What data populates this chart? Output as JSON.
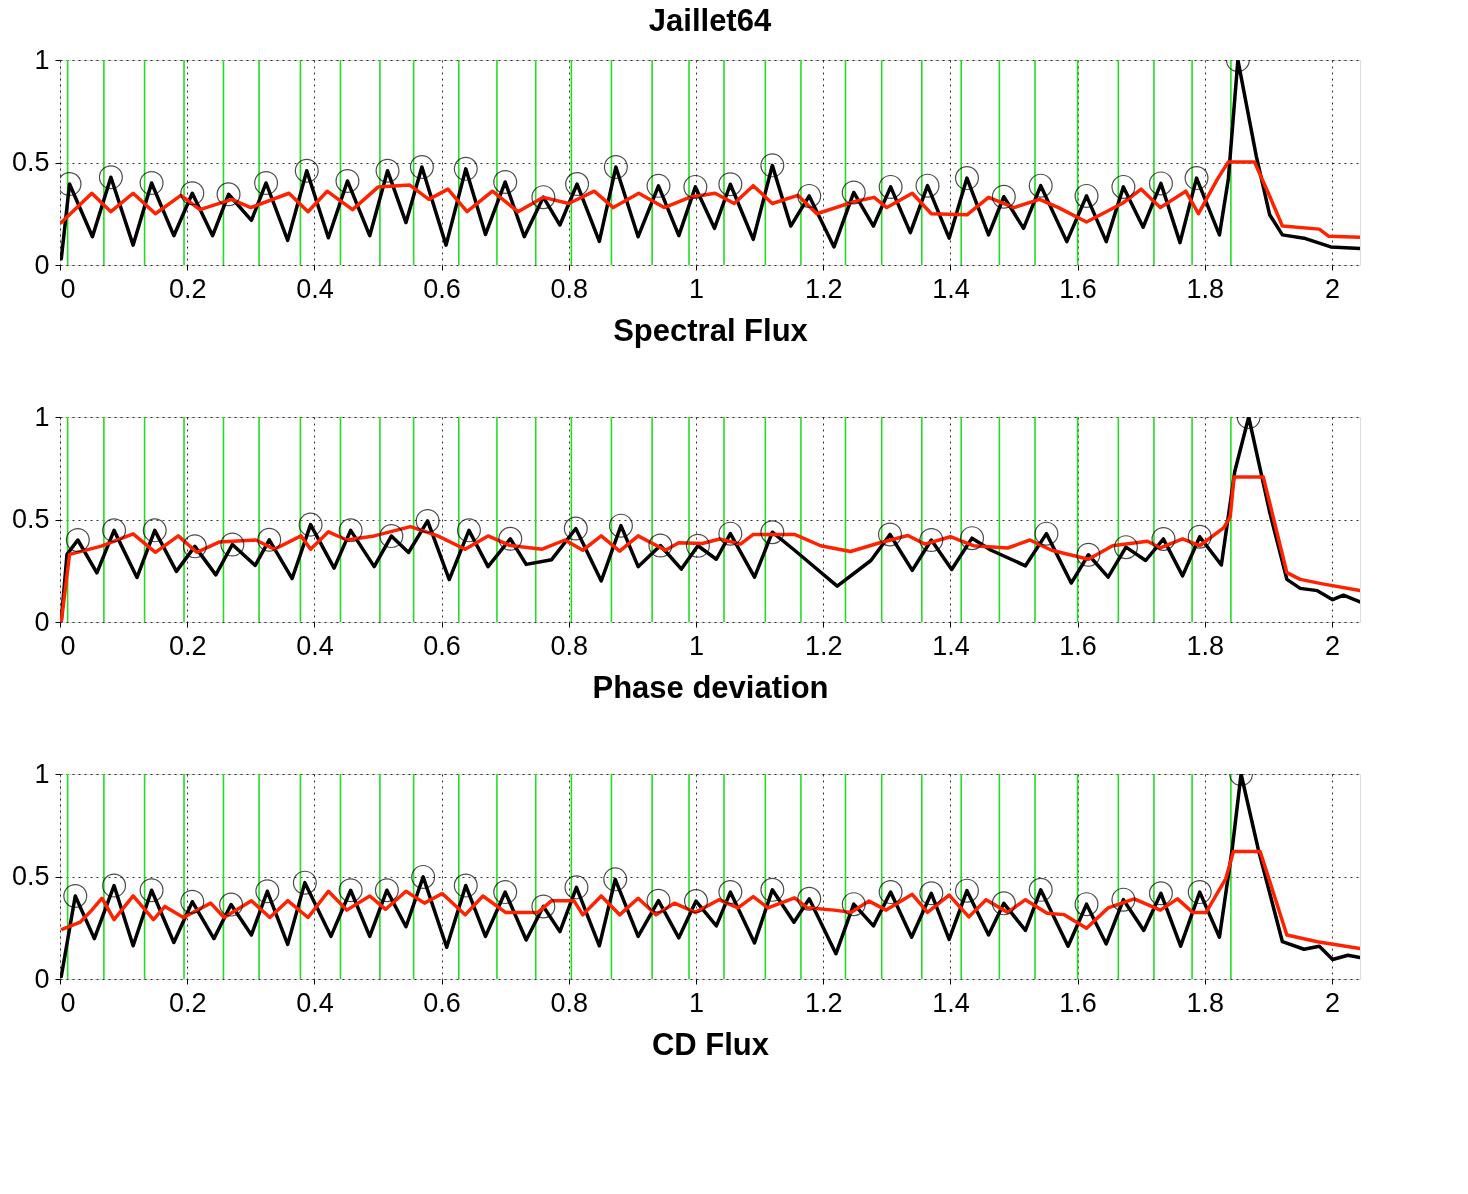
{
  "chart_data": [
    {
      "type": "line",
      "title": "Jaillet64",
      "xlabel": "Spectral Flux",
      "xlim": [
        0,
        2.044
      ],
      "ylim": [
        0,
        1
      ],
      "xticks": [
        0,
        0.2,
        0.4,
        0.6,
        0.8,
        1,
        1.2,
        1.4,
        1.6,
        1.8,
        2
      ],
      "yticks": [
        0,
        0.5,
        1
      ],
      "grid": true,
      "series": [
        {
          "type": "line",
          "color": "#000000",
          "x": [
            0.002,
            0.015,
            0.051,
            0.08,
            0.115,
            0.144,
            0.179,
            0.208,
            0.24,
            0.265,
            0.301,
            0.324,
            0.358,
            0.388,
            0.422,
            0.452,
            0.487,
            0.515,
            0.544,
            0.569,
            0.607,
            0.638,
            0.669,
            0.7,
            0.73,
            0.76,
            0.786,
            0.813,
            0.848,
            0.874,
            0.909,
            0.941,
            0.973,
            0.999,
            1.029,
            1.054,
            1.09,
            1.12,
            1.149,
            1.178,
            1.217,
            1.248,
            1.279,
            1.306,
            1.337,
            1.364,
            1.398,
            1.426,
            1.46,
            1.484,
            1.515,
            1.542,
            1.583,
            1.614,
            1.645,
            1.672,
            1.703,
            1.731,
            1.761,
            1.787,
            1.823,
            1.837,
            1.852,
            1.881,
            1.902,
            1.922,
            1.956,
            1.998,
            2.044
          ],
          "values": [
            0.03,
            0.395,
            0.138,
            0.428,
            0.097,
            0.4,
            0.143,
            0.35,
            0.143,
            0.345,
            0.218,
            0.4,
            0.12,
            0.46,
            0.133,
            0.41,
            0.143,
            0.46,
            0.207,
            0.478,
            0.097,
            0.469,
            0.149,
            0.405,
            0.138,
            0.331,
            0.195,
            0.395,
            0.115,
            0.478,
            0.138,
            0.386,
            0.143,
            0.381,
            0.179,
            0.394,
            0.125,
            0.486,
            0.19,
            0.337,
            0.088,
            0.354,
            0.19,
            0.381,
            0.158,
            0.387,
            0.131,
            0.424,
            0.147,
            0.333,
            0.179,
            0.387,
            0.114,
            0.337,
            0.114,
            0.381,
            0.184,
            0.398,
            0.109,
            0.424,
            0.147,
            0.42,
            1.0,
            0.53,
            0.245,
            0.147,
            0.131,
            0.088,
            0.081
          ]
        },
        {
          "type": "line",
          "color": "#ff2200",
          "x": [
            0.002,
            0.05,
            0.08,
            0.115,
            0.15,
            0.19,
            0.22,
            0.27,
            0.3,
            0.36,
            0.39,
            0.42,
            0.46,
            0.5,
            0.55,
            0.58,
            0.61,
            0.64,
            0.68,
            0.72,
            0.76,
            0.8,
            0.84,
            0.87,
            0.91,
            0.95,
            0.99,
            1.03,
            1.06,
            1.09,
            1.12,
            1.16,
            1.19,
            1.25,
            1.28,
            1.3,
            1.34,
            1.37,
            1.426,
            1.46,
            1.5,
            1.54,
            1.57,
            1.614,
            1.67,
            1.7,
            1.73,
            1.77,
            1.79,
            1.82,
            1.837,
            1.878,
            1.9,
            1.922,
            1.98,
            1.995,
            2.044
          ],
          "values": [
            0.207,
            0.35,
            0.26,
            0.35,
            0.25,
            0.34,
            0.27,
            0.32,
            0.28,
            0.35,
            0.26,
            0.36,
            0.27,
            0.38,
            0.39,
            0.32,
            0.37,
            0.26,
            0.36,
            0.26,
            0.33,
            0.3,
            0.36,
            0.28,
            0.35,
            0.28,
            0.33,
            0.35,
            0.3,
            0.387,
            0.3,
            0.34,
            0.25,
            0.31,
            0.33,
            0.28,
            0.35,
            0.25,
            0.245,
            0.33,
            0.28,
            0.32,
            0.28,
            0.21,
            0.3,
            0.37,
            0.28,
            0.36,
            0.25,
            0.42,
            0.503,
            0.503,
            0.35,
            0.19,
            0.175,
            0.14,
            0.135
          ]
        },
        {
          "type": "scatter",
          "marker": "circle",
          "color": "#000000",
          "x": [
            0.015,
            0.08,
            0.144,
            0.208,
            0.265,
            0.324,
            0.388,
            0.452,
            0.515,
            0.569,
            0.638,
            0.7,
            0.76,
            0.813,
            0.874,
            0.941,
            0.999,
            1.054,
            1.12,
            1.178,
            1.248,
            1.306,
            1.364,
            1.426,
            1.484,
            1.542,
            1.614,
            1.672,
            1.731,
            1.787,
            1.852
          ],
          "values": [
            0.395,
            0.428,
            0.4,
            0.35,
            0.345,
            0.4,
            0.46,
            0.41,
            0.46,
            0.478,
            0.469,
            0.405,
            0.331,
            0.395,
            0.478,
            0.386,
            0.381,
            0.394,
            0.486,
            0.337,
            0.354,
            0.381,
            0.387,
            0.424,
            0.333,
            0.387,
            0.337,
            0.381,
            0.398,
            0.424,
            1.0
          ]
        }
      ],
      "ref_lines": [
        {
          "axis": "x",
          "value": 0.012,
          "color": "#22dd22"
        },
        {
          "axis": "x",
          "value": 0.069,
          "color": "#22dd22"
        },
        {
          "axis": "x",
          "value": 0.133,
          "color": "#22dd22"
        },
        {
          "axis": "x",
          "value": 0.195,
          "color": "#22dd22"
        },
        {
          "axis": "x",
          "value": 0.257,
          "color": "#22dd22"
        },
        {
          "axis": "x",
          "value": 0.313,
          "color": "#22dd22"
        },
        {
          "axis": "x",
          "value": 0.378,
          "color": "#22dd22"
        },
        {
          "axis": "x",
          "value": 0.441,
          "color": "#22dd22"
        },
        {
          "axis": "x",
          "value": 0.503,
          "color": "#22dd22"
        },
        {
          "axis": "x",
          "value": 0.556,
          "color": "#22dd22"
        },
        {
          "axis": "x",
          "value": 0.627,
          "color": "#22dd22"
        },
        {
          "axis": "x",
          "value": 0.687,
          "color": "#22dd22"
        },
        {
          "axis": "x",
          "value": 0.748,
          "color": "#22dd22"
        },
        {
          "axis": "x",
          "value": 0.804,
          "color": "#22dd22"
        },
        {
          "axis": "x",
          "value": 0.867,
          "color": "#22dd22"
        },
        {
          "axis": "x",
          "value": 0.931,
          "color": "#22dd22"
        },
        {
          "axis": "x",
          "value": 0.989,
          "color": "#22dd22"
        },
        {
          "axis": "x",
          "value": 1.044,
          "color": "#22dd22"
        },
        {
          "axis": "x",
          "value": 1.109,
          "color": "#22dd22"
        },
        {
          "axis": "x",
          "value": 1.165,
          "color": "#22dd22"
        },
        {
          "axis": "x",
          "value": 1.235,
          "color": "#22dd22"
        },
        {
          "axis": "x",
          "value": 1.292,
          "color": "#22dd22"
        },
        {
          "axis": "x",
          "value": 1.355,
          "color": "#22dd22"
        },
        {
          "axis": "x",
          "value": 1.417,
          "color": "#22dd22"
        },
        {
          "axis": "x",
          "value": 1.477,
          "color": "#22dd22"
        },
        {
          "axis": "x",
          "value": 1.533,
          "color": "#22dd22"
        },
        {
          "axis": "x",
          "value": 1.6,
          "color": "#22dd22"
        },
        {
          "axis": "x",
          "value": 1.664,
          "color": "#22dd22"
        },
        {
          "axis": "x",
          "value": 1.72,
          "color": "#22dd22"
        },
        {
          "axis": "x",
          "value": 1.78,
          "color": "#22dd22"
        },
        {
          "axis": "x",
          "value": 1.841,
          "color": "#22dd22"
        }
      ]
    },
    {
      "type": "line",
      "xlabel": "Phase deviation",
      "xlim": [
        0,
        2.044
      ],
      "ylim": [
        0,
        1
      ],
      "xticks": [
        0,
        0.2,
        0.4,
        0.6,
        0.8,
        1,
        1.2,
        1.4,
        1.6,
        1.8,
        2
      ],
      "yticks": [
        0,
        0.5,
        1
      ],
      "grid": true,
      "series": [
        {
          "type": "line",
          "color": "#000000",
          "x": [
            0.002,
            0.011,
            0.028,
            0.058,
            0.085,
            0.121,
            0.149,
            0.183,
            0.212,
            0.245,
            0.271,
            0.307,
            0.329,
            0.365,
            0.394,
            0.431,
            0.457,
            0.494,
            0.521,
            0.548,
            0.578,
            0.612,
            0.643,
            0.673,
            0.708,
            0.733,
            0.773,
            0.811,
            0.851,
            0.882,
            0.909,
            0.944,
            0.977,
            1.003,
            1.032,
            1.054,
            1.092,
            1.12,
            1.155,
            1.222,
            1.275,
            1.305,
            1.34,
            1.37,
            1.402,
            1.434,
            1.464,
            1.518,
            1.551,
            1.59,
            1.617,
            1.648,
            1.676,
            1.707,
            1.735,
            1.765,
            1.792,
            1.826,
            1.847,
            1.869,
            1.902,
            1.929,
            1.95,
            1.977,
            2.001,
            2.018,
            2.044
          ],
          "values": [
            0.005,
            0.33,
            0.4,
            0.24,
            0.447,
            0.217,
            0.447,
            0.247,
            0.369,
            0.23,
            0.378,
            0.276,
            0.401,
            0.212,
            0.475,
            0.263,
            0.447,
            0.27,
            0.419,
            0.339,
            0.493,
            0.207,
            0.447,
            0.27,
            0.406,
            0.281,
            0.304,
            0.456,
            0.2,
            0.47,
            0.27,
            0.373,
            0.258,
            0.372,
            0.306,
            0.431,
            0.219,
            0.438,
            0.35,
            0.175,
            0.3,
            0.427,
            0.252,
            0.4,
            0.256,
            0.409,
            0.35,
            0.274,
            0.431,
            0.19,
            0.328,
            0.219,
            0.365,
            0.3,
            0.405,
            0.225,
            0.416,
            0.278,
            0.733,
            1.0,
            0.536,
            0.208,
            0.164,
            0.153,
            0.109,
            0.131,
            0.098
          ]
        },
        {
          "type": "line",
          "color": "#ff2200",
          "x": [
            0.002,
            0.015,
            0.065,
            0.115,
            0.15,
            0.186,
            0.215,
            0.25,
            0.308,
            0.337,
            0.379,
            0.394,
            0.422,
            0.451,
            0.494,
            0.551,
            0.594,
            0.637,
            0.673,
            0.708,
            0.758,
            0.794,
            0.822,
            0.851,
            0.88,
            0.909,
            0.952,
            0.973,
            1.01,
            1.037,
            1.07,
            1.09,
            1.155,
            1.196,
            1.243,
            1.285,
            1.333,
            1.36,
            1.4,
            1.436,
            1.49,
            1.525,
            1.559,
            1.617,
            1.655,
            1.71,
            1.73,
            1.765,
            1.792,
            1.83,
            1.84,
            1.846,
            1.892,
            1.929,
            1.95,
            1.985,
            2.044
          ],
          "values": [
            0,
            0.33,
            0.37,
            0.43,
            0.34,
            0.42,
            0.34,
            0.39,
            0.4,
            0.355,
            0.42,
            0.355,
            0.44,
            0.4,
            0.42,
            0.465,
            0.42,
            0.355,
            0.42,
            0.373,
            0.355,
            0.4,
            0.35,
            0.42,
            0.346,
            0.42,
            0.35,
            0.387,
            0.383,
            0.405,
            0.38,
            0.427,
            0.427,
            0.372,
            0.344,
            0.383,
            0.422,
            0.38,
            0.416,
            0.372,
            0.361,
            0.4,
            0.35,
            0.306,
            0.372,
            0.394,
            0.361,
            0.405,
            0.372,
            0.46,
            0.514,
            0.707,
            0.707,
            0.241,
            0.208,
            0.186,
            0.153
          ]
        },
        {
          "type": "scatter",
          "marker": "circle",
          "color": "#000000",
          "x": [
            0.028,
            0.085,
            0.149,
            0.212,
            0.271,
            0.329,
            0.394,
            0.457,
            0.521,
            0.578,
            0.643,
            0.708,
            0.811,
            0.882,
            0.944,
            1.003,
            1.054,
            1.12,
            1.305,
            1.37,
            1.434,
            1.551,
            1.617,
            1.676,
            1.735,
            1.792,
            1.869
          ],
          "values": [
            0.4,
            0.447,
            0.447,
            0.369,
            0.378,
            0.401,
            0.475,
            0.447,
            0.419,
            0.493,
            0.447,
            0.406,
            0.456,
            0.47,
            0.373,
            0.372,
            0.431,
            0.438,
            0.427,
            0.4,
            0.409,
            0.431,
            0.328,
            0.365,
            0.405,
            0.416,
            1.0
          ]
        }
      ],
      "ref_lines": [
        {
          "axis": "x",
          "value": 0.012,
          "color": "#22dd22"
        },
        {
          "axis": "x",
          "value": 0.069,
          "color": "#22dd22"
        },
        {
          "axis": "x",
          "value": 0.133,
          "color": "#22dd22"
        },
        {
          "axis": "x",
          "value": 0.195,
          "color": "#22dd22"
        },
        {
          "axis": "x",
          "value": 0.257,
          "color": "#22dd22"
        },
        {
          "axis": "x",
          "value": 0.313,
          "color": "#22dd22"
        },
        {
          "axis": "x",
          "value": 0.378,
          "color": "#22dd22"
        },
        {
          "axis": "x",
          "value": 0.441,
          "color": "#22dd22"
        },
        {
          "axis": "x",
          "value": 0.503,
          "color": "#22dd22"
        },
        {
          "axis": "x",
          "value": 0.556,
          "color": "#22dd22"
        },
        {
          "axis": "x",
          "value": 0.627,
          "color": "#22dd22"
        },
        {
          "axis": "x",
          "value": 0.687,
          "color": "#22dd22"
        },
        {
          "axis": "x",
          "value": 0.748,
          "color": "#22dd22"
        },
        {
          "axis": "x",
          "value": 0.804,
          "color": "#22dd22"
        },
        {
          "axis": "x",
          "value": 0.867,
          "color": "#22dd22"
        },
        {
          "axis": "x",
          "value": 0.931,
          "color": "#22dd22"
        },
        {
          "axis": "x",
          "value": 0.989,
          "color": "#22dd22"
        },
        {
          "axis": "x",
          "value": 1.044,
          "color": "#22dd22"
        },
        {
          "axis": "x",
          "value": 1.109,
          "color": "#22dd22"
        },
        {
          "axis": "x",
          "value": 1.165,
          "color": "#22dd22"
        },
        {
          "axis": "x",
          "value": 1.235,
          "color": "#22dd22"
        },
        {
          "axis": "x",
          "value": 1.292,
          "color": "#22dd22"
        },
        {
          "axis": "x",
          "value": 1.355,
          "color": "#22dd22"
        },
        {
          "axis": "x",
          "value": 1.417,
          "color": "#22dd22"
        },
        {
          "axis": "x",
          "value": 1.477,
          "color": "#22dd22"
        },
        {
          "axis": "x",
          "value": 1.533,
          "color": "#22dd22"
        },
        {
          "axis": "x",
          "value": 1.6,
          "color": "#22dd22"
        },
        {
          "axis": "x",
          "value": 1.664,
          "color": "#22dd22"
        },
        {
          "axis": "x",
          "value": 1.72,
          "color": "#22dd22"
        },
        {
          "axis": "x",
          "value": 1.78,
          "color": "#22dd22"
        },
        {
          "axis": "x",
          "value": 1.841,
          "color": "#22dd22"
        }
      ]
    },
    {
      "type": "line",
      "xlabel": "CD Flux",
      "xlim": [
        0,
        2.044
      ],
      "ylim": [
        0,
        1
      ],
      "xticks": [
        0,
        0.2,
        0.4,
        0.6,
        0.8,
        1,
        1.2,
        1.4,
        1.6,
        1.8,
        2
      ],
      "yticks": [
        0,
        0.5,
        1
      ],
      "grid": true,
      "series": [
        {
          "type": "line",
          "color": "#000000",
          "x": [
            0.002,
            0.024,
            0.054,
            0.085,
            0.115,
            0.144,
            0.179,
            0.208,
            0.242,
            0.269,
            0.301,
            0.326,
            0.358,
            0.385,
            0.426,
            0.457,
            0.487,
            0.514,
            0.544,
            0.571,
            0.608,
            0.638,
            0.669,
            0.7,
            0.733,
            0.76,
            0.786,
            0.812,
            0.848,
            0.873,
            0.909,
            0.941,
            0.973,
            1.0,
            1.032,
            1.054,
            1.092,
            1.12,
            1.154,
            1.178,
            1.22,
            1.248,
            1.279,
            1.306,
            1.339,
            1.37,
            1.398,
            1.426,
            1.46,
            1.484,
            1.518,
            1.542,
            1.585,
            1.614,
            1.645,
            1.672,
            1.704,
            1.731,
            1.762,
            1.792,
            1.823,
            1.843,
            1.857,
            1.884,
            1.922,
            1.956,
            1.98,
            2.001,
            2.025,
            2.044
          ],
          "values": [
            0.012,
            0.405,
            0.197,
            0.456,
            0.162,
            0.433,
            0.178,
            0.377,
            0.197,
            0.363,
            0.215,
            0.428,
            0.169,
            0.47,
            0.208,
            0.433,
            0.208,
            0.433,
            0.255,
            0.498,
            0.155,
            0.456,
            0.208,
            0.424,
            0.19,
            0.354,
            0.231,
            0.447,
            0.162,
            0.486,
            0.208,
            0.382,
            0.201,
            0.38,
            0.259,
            0.424,
            0.176,
            0.435,
            0.277,
            0.391,
            0.123,
            0.365,
            0.259,
            0.424,
            0.204,
            0.418,
            0.193,
            0.431,
            0.215,
            0.369,
            0.237,
            0.435,
            0.16,
            0.365,
            0.171,
            0.387,
            0.237,
            0.418,
            0.16,
            0.424,
            0.204,
            0.633,
            1.0,
            0.633,
            0.182,
            0.145,
            0.16,
            0.095,
            0.116,
            0.105
          ]
        },
        {
          "type": "line",
          "color": "#ff2200",
          "x": [
            0.004,
            0.032,
            0.05,
            0.066,
            0.085,
            0.115,
            0.147,
            0.165,
            0.194,
            0.237,
            0.258,
            0.301,
            0.33,
            0.358,
            0.39,
            0.422,
            0.451,
            0.487,
            0.512,
            0.544,
            0.573,
            0.601,
            0.637,
            0.665,
            0.701,
            0.751,
            0.773,
            0.808,
            0.822,
            0.851,
            0.88,
            0.909,
            0.937,
            0.966,
            0.999,
            1.036,
            1.066,
            1.09,
            1.113,
            1.155,
            1.175,
            1.217,
            1.244,
            1.272,
            1.299,
            1.34,
            1.364,
            1.398,
            1.429,
            1.456,
            1.49,
            1.518,
            1.552,
            1.579,
            1.614,
            1.648,
            1.689,
            1.73,
            1.757,
            1.781,
            1.802,
            1.833,
            1.845,
            1.887,
            1.929,
            1.977,
            2.044
          ],
          "values": [
            0.243,
            0.278,
            0.336,
            0.394,
            0.29,
            0.405,
            0.29,
            0.354,
            0.3,
            0.37,
            0.3,
            0.382,
            0.3,
            0.382,
            0.3,
            0.428,
            0.336,
            0.405,
            0.34,
            0.428,
            0.37,
            0.417,
            0.313,
            0.405,
            0.324,
            0.324,
            0.382,
            0.382,
            0.313,
            0.405,
            0.313,
            0.394,
            0.313,
            0.37,
            0.325,
            0.387,
            0.347,
            0.402,
            0.347,
            0.396,
            0.347,
            0.336,
            0.325,
            0.38,
            0.336,
            0.413,
            0.325,
            0.409,
            0.303,
            0.387,
            0.325,
            0.387,
            0.321,
            0.314,
            0.248,
            0.347,
            0.391,
            0.336,
            0.391,
            0.325,
            0.325,
            0.49,
            0.622,
            0.622,
            0.215,
            0.182,
            0.149
          ]
        },
        {
          "type": "scatter",
          "marker": "circle",
          "color": "#000000",
          "x": [
            0.024,
            0.085,
            0.144,
            0.208,
            0.269,
            0.326,
            0.385,
            0.457,
            0.514,
            0.571,
            0.638,
            0.7,
            0.76,
            0.812,
            0.873,
            0.941,
            1.0,
            1.054,
            1.12,
            1.178,
            1.248,
            1.306,
            1.37,
            1.426,
            1.484,
            1.542,
            1.614,
            1.672,
            1.731,
            1.792,
            1.857
          ],
          "values": [
            0.405,
            0.456,
            0.433,
            0.377,
            0.363,
            0.428,
            0.47,
            0.433,
            0.433,
            0.498,
            0.456,
            0.424,
            0.354,
            0.447,
            0.486,
            0.382,
            0.38,
            0.424,
            0.435,
            0.391,
            0.365,
            0.424,
            0.418,
            0.431,
            0.369,
            0.435,
            0.365,
            0.387,
            0.418,
            0.424,
            1.0
          ]
        }
      ],
      "ref_lines": [
        {
          "axis": "x",
          "value": 0.012,
          "color": "#22dd22"
        },
        {
          "axis": "x",
          "value": 0.069,
          "color": "#22dd22"
        },
        {
          "axis": "x",
          "value": 0.133,
          "color": "#22dd22"
        },
        {
          "axis": "x",
          "value": 0.195,
          "color": "#22dd22"
        },
        {
          "axis": "x",
          "value": 0.257,
          "color": "#22dd22"
        },
        {
          "axis": "x",
          "value": 0.313,
          "color": "#22dd22"
        },
        {
          "axis": "x",
          "value": 0.378,
          "color": "#22dd22"
        },
        {
          "axis": "x",
          "value": 0.441,
          "color": "#22dd22"
        },
        {
          "axis": "x",
          "value": 0.503,
          "color": "#22dd22"
        },
        {
          "axis": "x",
          "value": 0.556,
          "color": "#22dd22"
        },
        {
          "axis": "x",
          "value": 0.627,
          "color": "#22dd22"
        },
        {
          "axis": "x",
          "value": 0.687,
          "color": "#22dd22"
        },
        {
          "axis": "x",
          "value": 0.748,
          "color": "#22dd22"
        },
        {
          "axis": "x",
          "value": 0.804,
          "color": "#22dd22"
        },
        {
          "axis": "x",
          "value": 0.867,
          "color": "#22dd22"
        },
        {
          "axis": "x",
          "value": 0.931,
          "color": "#22dd22"
        },
        {
          "axis": "x",
          "value": 0.989,
          "color": "#22dd22"
        },
        {
          "axis": "x",
          "value": 1.044,
          "color": "#22dd22"
        },
        {
          "axis": "x",
          "value": 1.109,
          "color": "#22dd22"
        },
        {
          "axis": "x",
          "value": 1.165,
          "color": "#22dd22"
        },
        {
          "axis": "x",
          "value": 1.235,
          "color": "#22dd22"
        },
        {
          "axis": "x",
          "value": 1.292,
          "color": "#22dd22"
        },
        {
          "axis": "x",
          "value": 1.355,
          "color": "#22dd22"
        },
        {
          "axis": "x",
          "value": 1.417,
          "color": "#22dd22"
        },
        {
          "axis": "x",
          "value": 1.477,
          "color": "#22dd22"
        },
        {
          "axis": "x",
          "value": 1.533,
          "color": "#22dd22"
        },
        {
          "axis": "x",
          "value": 1.6,
          "color": "#22dd22"
        },
        {
          "axis": "x",
          "value": 1.664,
          "color": "#22dd22"
        },
        {
          "axis": "x",
          "value": 1.72,
          "color": "#22dd22"
        },
        {
          "axis": "x",
          "value": 1.78,
          "color": "#22dd22"
        },
        {
          "axis": "x",
          "value": 1.841,
          "color": "#22dd22"
        }
      ]
    }
  ]
}
